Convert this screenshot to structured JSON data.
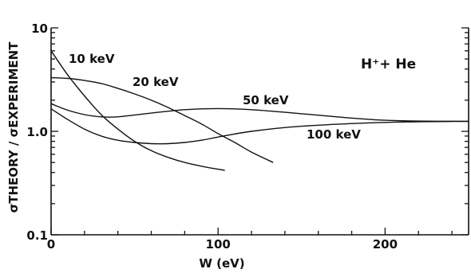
{
  "chart_data": {
    "type": "line",
    "title": "H⁺+ He",
    "xlabel": "W (eV)",
    "ylabel": "σTHEORY / σEXPERIMENT",
    "xlim": [
      0,
      250
    ],
    "ylim": [
      0.1,
      10
    ],
    "yscale": "log",
    "x_ticks": [
      0,
      100,
      200
    ],
    "x_tick_labels": [
      "0",
      "100",
      "200"
    ],
    "y_ticks": [
      0.1,
      1.0,
      10
    ],
    "y_tick_labels": [
      "0.1",
      "1.0",
      "10"
    ],
    "grid": false,
    "series": [
      {
        "name": "10 keV",
        "x": [
          0,
          10,
          20,
          30,
          40,
          50,
          60,
          70,
          80,
          90,
          100,
          104
        ],
        "y": [
          6.0,
          3.5,
          2.2,
          1.45,
          1.05,
          0.8,
          0.65,
          0.56,
          0.5,
          0.46,
          0.43,
          0.42
        ]
      },
      {
        "name": "20 keV",
        "x": [
          0,
          10,
          20,
          30,
          40,
          50,
          60,
          70,
          80,
          90,
          100,
          110,
          120,
          133
        ],
        "y": [
          3.3,
          3.25,
          3.1,
          2.9,
          2.6,
          2.3,
          2.0,
          1.7,
          1.42,
          1.18,
          0.95,
          0.78,
          0.63,
          0.5
        ]
      },
      {
        "name": "50 keV",
        "x": [
          0,
          10,
          20,
          30,
          40,
          60,
          80,
          100,
          120,
          150,
          200,
          250
        ],
        "y": [
          1.85,
          1.6,
          1.45,
          1.38,
          1.38,
          1.5,
          1.62,
          1.66,
          1.62,
          1.48,
          1.28,
          1.25
        ]
      },
      {
        "name": "100 keV",
        "x": [
          0,
          10,
          20,
          30,
          40,
          50,
          60,
          70,
          80,
          90,
          100,
          120,
          150,
          200,
          250
        ],
        "y": [
          1.65,
          1.3,
          1.05,
          0.9,
          0.82,
          0.78,
          0.76,
          0.76,
          0.78,
          0.82,
          0.88,
          1.0,
          1.12,
          1.22,
          1.25
        ]
      }
    ]
  }
}
